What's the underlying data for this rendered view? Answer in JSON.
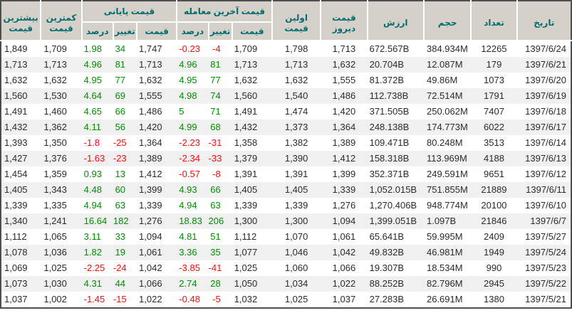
{
  "colors": {
    "header_bg": "#d5d1c9",
    "header_text": "#006b70",
    "row_stripe": "#f0f0f0",
    "positive": "#058a05",
    "negative": "#f50d0d",
    "outer_border": "#4e4e4e"
  },
  "table": {
    "headers": {
      "date": "تاریخ",
      "count": "تعداد",
      "volume": "حجم",
      "value": "ارزش",
      "yesterday": {
        "l1": "قیمت",
        "l2": "دیروز"
      },
      "first": {
        "l1": "اولین",
        "l2": "قیمت"
      },
      "last_trade_group": "قیمت آخرین معامله",
      "final_group": "قیمت پایانی",
      "sub_price": "قیمت",
      "sub_change": "تغییر",
      "sub_percent": "درصد",
      "lowest": {
        "l1": "کمترین",
        "l2": "قیمت"
      },
      "highest": {
        "l1": "بیشترین",
        "l2": "قیمت"
      }
    },
    "rows": [
      {
        "date": "1397/6/24",
        "count": "12265",
        "volume": "384.934M",
        "value": "672.567B",
        "yesterday": "1,713",
        "first": "1,798",
        "last_price": "1,709",
        "last_change": "-4",
        "last_percent": "-0.23",
        "final_price": "1,747",
        "final_change": "34",
        "final_percent": "1.98",
        "lowest": "1,709",
        "highest": "1,849"
      },
      {
        "date": "1397/6/21",
        "count": "179",
        "volume": "12.087M",
        "value": "20.704B",
        "yesterday": "1,632",
        "first": "1,713",
        "last_price": "1,713",
        "last_change": "81",
        "last_percent": "4.96",
        "final_price": "1,713",
        "final_change": "81",
        "final_percent": "4.96",
        "lowest": "1,713",
        "highest": "1,713"
      },
      {
        "date": "1397/6/20",
        "count": "1073",
        "volume": "49.86M",
        "value": "81.372B",
        "yesterday": "1,555",
        "first": "1,632",
        "last_price": "1,632",
        "last_change": "77",
        "last_percent": "4.95",
        "final_price": "1,632",
        "final_change": "77",
        "final_percent": "4.95",
        "lowest": "1,632",
        "highest": "1,632"
      },
      {
        "date": "1397/6/19",
        "count": "1791",
        "volume": "72.514M",
        "value": "112.738B",
        "yesterday": "1,486",
        "first": "1,540",
        "last_price": "1,560",
        "last_change": "74",
        "last_percent": "4.98",
        "final_price": "1,555",
        "final_change": "69",
        "final_percent": "4.64",
        "lowest": "1,530",
        "highest": "1,560"
      },
      {
        "date": "1397/6/18",
        "count": "7407",
        "volume": "250.062M",
        "value": "371.505B",
        "yesterday": "1,420",
        "first": "1,474",
        "last_price": "1,491",
        "last_change": "71",
        "last_percent": "5",
        "final_price": "1,486",
        "final_change": "66",
        "final_percent": "4.65",
        "lowest": "1,460",
        "highest": "1,491"
      },
      {
        "date": "1397/6/17",
        "count": "6022",
        "volume": "174.773M",
        "value": "248.138B",
        "yesterday": "1,364",
        "first": "1,373",
        "last_price": "1,432",
        "last_change": "68",
        "last_percent": "4.99",
        "final_price": "1,420",
        "final_change": "56",
        "final_percent": "4.11",
        "lowest": "1,362",
        "highest": "1,432"
      },
      {
        "date": "1397/6/14",
        "count": "3513",
        "volume": "80.248M",
        "value": "109.471B",
        "yesterday": "1,389",
        "first": "1,382",
        "last_price": "1,358",
        "last_change": "-31",
        "last_percent": "-2.23",
        "final_price": "1,364",
        "final_change": "-25",
        "final_percent": "-1.8",
        "lowest": "1,350",
        "highest": "1,393"
      },
      {
        "date": "1397/6/13",
        "count": "4188",
        "volume": "113.969M",
        "value": "158.318B",
        "yesterday": "1,412",
        "first": "1,390",
        "last_price": "1,379",
        "last_change": "-33",
        "last_percent": "-2.34",
        "final_price": "1,389",
        "final_change": "-23",
        "final_percent": "-1.63",
        "lowest": "1,376",
        "highest": "1,427"
      },
      {
        "date": "1397/6/12",
        "count": "9651",
        "volume": "249.591M",
        "value": "352.371B",
        "yesterday": "1,399",
        "first": "1,391",
        "last_price": "1,391",
        "last_change": "-8",
        "last_percent": "-0.57",
        "final_price": "1,412",
        "final_change": "13",
        "final_percent": "0.93",
        "lowest": "1,359",
        "highest": "1,454"
      },
      {
        "date": "1397/6/11",
        "count": "21889",
        "volume": "751.855M",
        "value": "1,052.015B",
        "yesterday": "1,339",
        "first": "1,405",
        "last_price": "1,405",
        "last_change": "66",
        "last_percent": "4.93",
        "final_price": "1,399",
        "final_change": "60",
        "final_percent": "4.48",
        "lowest": "1,343",
        "highest": "1,405"
      },
      {
        "date": "1397/6/10",
        "count": "20100",
        "volume": "948.774M",
        "value": "1,270.406B",
        "yesterday": "1,276",
        "first": "1,339",
        "last_price": "1,339",
        "last_change": "63",
        "last_percent": "4.94",
        "final_price": "1,339",
        "final_change": "63",
        "final_percent": "4.94",
        "lowest": "1,335",
        "highest": "1,339"
      },
      {
        "date": "1397/6/7",
        "count": "21846",
        "volume": "1.097B",
        "value": "1,399.051B",
        "yesterday": "1,094",
        "first": "1,300",
        "last_price": "1,300",
        "last_change": "206",
        "last_percent": "18.83",
        "final_price": "1,276",
        "final_change": "182",
        "final_percent": "16.64",
        "lowest": "1,241",
        "highest": "1,340"
      },
      {
        "date": "1397/5/27",
        "count": "2409",
        "volume": "59.995M",
        "value": "65.641B",
        "yesterday": "1,061",
        "first": "1,070",
        "last_price": "1,112",
        "last_change": "51",
        "last_percent": "4.81",
        "final_price": "1,094",
        "final_change": "33",
        "final_percent": "3.11",
        "lowest": "1,065",
        "highest": "1,112"
      },
      {
        "date": "1397/5/24",
        "count": "1949",
        "volume": "46.981M",
        "value": "49.832B",
        "yesterday": "1,042",
        "first": "1,046",
        "last_price": "1,077",
        "last_change": "35",
        "last_percent": "3.36",
        "final_price": "1,061",
        "final_change": "19",
        "final_percent": "1.82",
        "lowest": "1,036",
        "highest": "1,078"
      },
      {
        "date": "1397/5/23",
        "count": "990",
        "volume": "18.534M",
        "value": "19.307B",
        "yesterday": "1,066",
        "first": "1,060",
        "last_price": "1,025",
        "last_change": "-41",
        "last_percent": "-3.85",
        "final_price": "1,042",
        "final_change": "-24",
        "final_percent": "-2.25",
        "lowest": "1,025",
        "highest": "1,069"
      },
      {
        "date": "1397/5/22",
        "count": "2945",
        "volume": "82.796M",
        "value": "88.252B",
        "yesterday": "1,022",
        "first": "1,034",
        "last_price": "1,050",
        "last_change": "28",
        "last_percent": "2.74",
        "final_price": "1,066",
        "final_change": "44",
        "final_percent": "4.31",
        "lowest": "1,030",
        "highest": "1,073"
      },
      {
        "date": "1397/5/21",
        "count": "1380",
        "volume": "26.691M",
        "value": "27.283B",
        "yesterday": "1,037",
        "first": "1,025",
        "last_price": "1,032",
        "last_change": "-5",
        "last_percent": "-0.48",
        "final_price": "1,022",
        "final_change": "-15",
        "final_percent": "-1.45",
        "lowest": "1,002",
        "highest": "1,037"
      }
    ]
  }
}
